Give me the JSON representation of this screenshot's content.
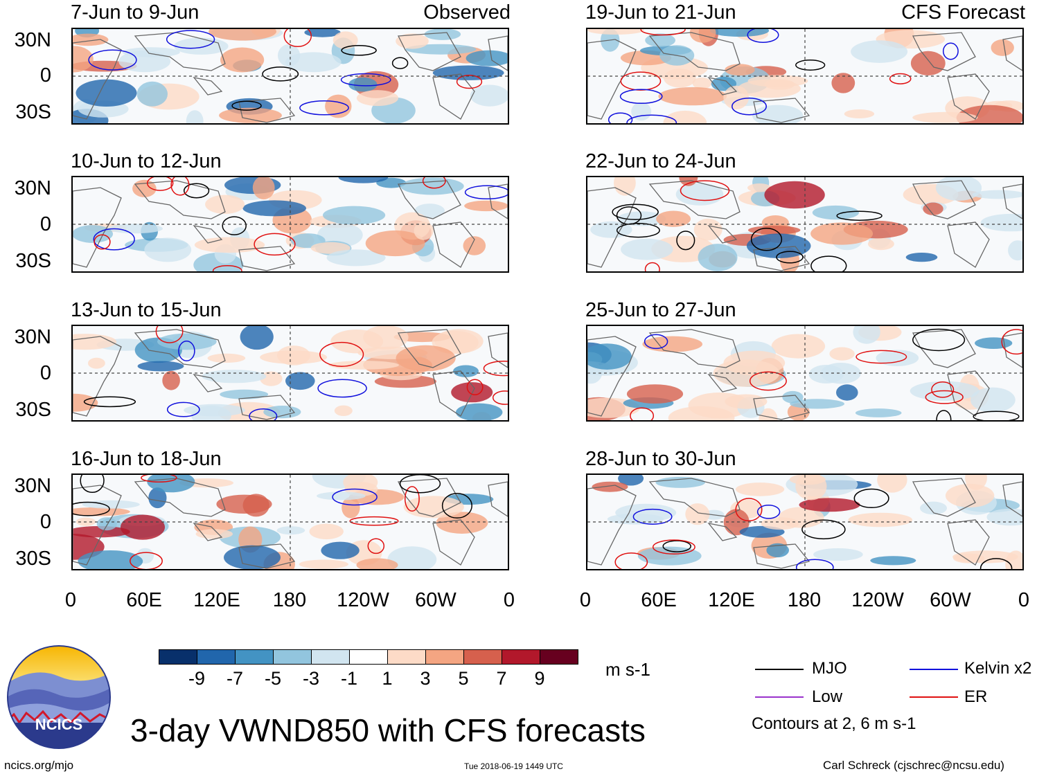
{
  "figure": {
    "title": "3-day VWND850 with CFS forecasts",
    "left_column_label": "Observed",
    "right_column_label": "CFS Forecast",
    "lat_labels": [
      "30N",
      "0",
      "30S"
    ],
    "lon_labels": [
      "0",
      "60E",
      "120E",
      "180",
      "120W",
      "60W",
      "0"
    ]
  },
  "panels_left": [
    {
      "title": "7-Jun to 9-Jun"
    },
    {
      "title": "10-Jun to 12-Jun"
    },
    {
      "title": "13-Jun to 15-Jun"
    },
    {
      "title": "16-Jun to 18-Jun"
    }
  ],
  "panels_right": [
    {
      "title": "19-Jun to 21-Jun"
    },
    {
      "title": "22-Jun to 24-Jun"
    },
    {
      "title": "25-Jun to 27-Jun"
    },
    {
      "title": "28-Jun to 30-Jun"
    }
  ],
  "colorbar": {
    "units": "m s-1",
    "ticks": [
      "-9",
      "-7",
      "-5",
      "-3",
      "-1",
      "1",
      "3",
      "5",
      "7",
      "9"
    ],
    "colors": [
      "#08306b",
      "#2166ac",
      "#4393c3",
      "#92c5de",
      "#d1e5f0",
      "#ffffff",
      "#fddbc7",
      "#f4a582",
      "#d6604d",
      "#b2182b",
      "#67001f"
    ]
  },
  "legend": {
    "mjo": {
      "label": "MJO",
      "color": "#000000"
    },
    "kelvin": {
      "label": "Kelvin x2",
      "color": "#1010dd"
    },
    "low": {
      "label": "Low",
      "color": "#9932cc"
    },
    "er": {
      "label": "ER",
      "color": "#e01010"
    },
    "contours_note": "Contours at 2, 6 m s-1"
  },
  "logo": {
    "text": "NCICS"
  },
  "footer": {
    "url": "ncics.org/mjo",
    "timestamp": "Tue 2018-06-19 1449 UTC",
    "credit": "Carl Schreck (cjschrec@ncsu.edu)"
  }
}
